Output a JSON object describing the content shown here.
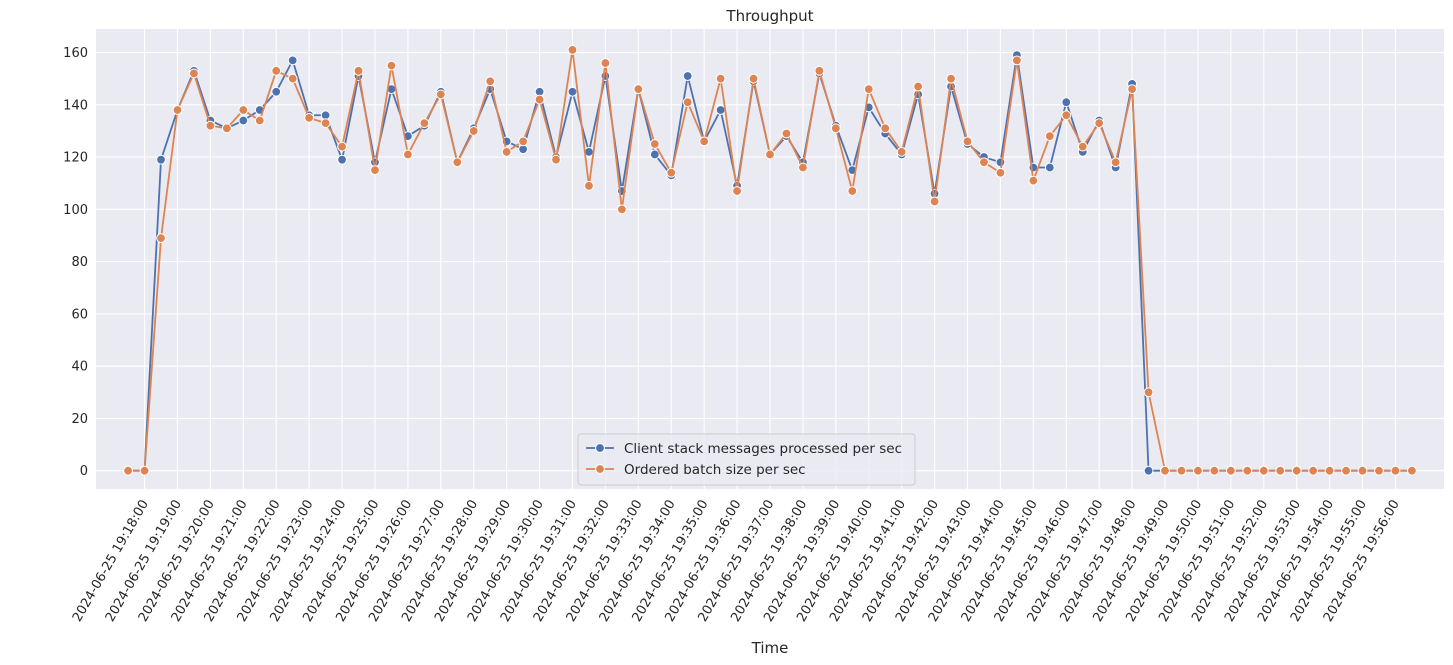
{
  "chart_data": {
    "type": "line",
    "title": "Throughput",
    "xlabel": "Time",
    "ylabel": "",
    "ylim": [
      -7,
      169
    ],
    "y_ticks": [
      0,
      20,
      40,
      60,
      80,
      100,
      120,
      140,
      160
    ],
    "x_ticks": [
      "2024-06-25 19:18:00",
      "2024-06-25 19:19:00",
      "2024-06-25 19:20:00",
      "2024-06-25 19:21:00",
      "2024-06-25 19:22:00",
      "2024-06-25 19:23:00",
      "2024-06-25 19:24:00",
      "2024-06-25 19:25:00",
      "2024-06-25 19:26:00",
      "2024-06-25 19:27:00",
      "2024-06-25 19:28:00",
      "2024-06-25 19:29:00",
      "2024-06-25 19:30:00",
      "2024-06-25 19:31:00",
      "2024-06-25 19:32:00",
      "2024-06-25 19:33:00",
      "2024-06-25 19:34:00",
      "2024-06-25 19:35:00",
      "2024-06-25 19:36:00",
      "2024-06-25 19:37:00",
      "2024-06-25 19:38:00",
      "2024-06-25 19:39:00",
      "2024-06-25 19:40:00",
      "2024-06-25 19:41:00",
      "2024-06-25 19:42:00",
      "2024-06-25 19:43:00",
      "2024-06-25 19:44:00",
      "2024-06-25 19:45:00",
      "2024-06-25 19:46:00",
      "2024-06-25 19:47:00",
      "2024-06-25 19:48:00",
      "2024-06-25 19:49:00",
      "2024-06-25 19:50:00",
      "2024-06-25 19:51:00",
      "2024-06-25 19:52:00",
      "2024-06-25 19:53:00",
      "2024-06-25 19:54:00",
      "2024-06-25 19:55:00",
      "2024-06-25 19:56:00"
    ],
    "x": [
      "2024-06-25 19:17:30",
      "2024-06-25 19:18:00",
      "2024-06-25 19:18:30",
      "2024-06-25 19:19:00",
      "2024-06-25 19:19:30",
      "2024-06-25 19:20:00",
      "2024-06-25 19:20:30",
      "2024-06-25 19:21:00",
      "2024-06-25 19:21:30",
      "2024-06-25 19:22:00",
      "2024-06-25 19:22:30",
      "2024-06-25 19:23:00",
      "2024-06-25 19:23:30",
      "2024-06-25 19:24:00",
      "2024-06-25 19:24:30",
      "2024-06-25 19:25:00",
      "2024-06-25 19:25:30",
      "2024-06-25 19:26:00",
      "2024-06-25 19:26:30",
      "2024-06-25 19:27:00",
      "2024-06-25 19:27:30",
      "2024-06-25 19:28:00",
      "2024-06-25 19:28:30",
      "2024-06-25 19:29:00",
      "2024-06-25 19:29:30",
      "2024-06-25 19:30:00",
      "2024-06-25 19:30:30",
      "2024-06-25 19:31:00",
      "2024-06-25 19:31:30",
      "2024-06-25 19:32:00",
      "2024-06-25 19:32:30",
      "2024-06-25 19:33:00",
      "2024-06-25 19:33:30",
      "2024-06-25 19:34:00",
      "2024-06-25 19:34:30",
      "2024-06-25 19:35:00",
      "2024-06-25 19:35:30",
      "2024-06-25 19:36:00",
      "2024-06-25 19:36:30",
      "2024-06-25 19:37:00",
      "2024-06-25 19:37:30",
      "2024-06-25 19:38:00",
      "2024-06-25 19:38:30",
      "2024-06-25 19:39:00",
      "2024-06-25 19:39:30",
      "2024-06-25 19:40:00",
      "2024-06-25 19:40:30",
      "2024-06-25 19:41:00",
      "2024-06-25 19:41:30",
      "2024-06-25 19:42:00",
      "2024-06-25 19:42:30",
      "2024-06-25 19:43:00",
      "2024-06-25 19:43:30",
      "2024-06-25 19:44:00",
      "2024-06-25 19:44:30",
      "2024-06-25 19:45:00",
      "2024-06-25 19:45:30",
      "2024-06-25 19:46:00",
      "2024-06-25 19:46:30",
      "2024-06-25 19:47:00",
      "2024-06-25 19:47:30",
      "2024-06-25 19:48:00",
      "2024-06-25 19:48:30",
      "2024-06-25 19:49:00",
      "2024-06-25 19:49:30",
      "2024-06-25 19:50:00",
      "2024-06-25 19:50:30",
      "2024-06-25 19:51:00",
      "2024-06-25 19:51:30",
      "2024-06-25 19:52:00",
      "2024-06-25 19:52:30",
      "2024-06-25 19:53:00",
      "2024-06-25 19:53:30",
      "2024-06-25 19:54:00",
      "2024-06-25 19:54:30",
      "2024-06-25 19:55:00",
      "2024-06-25 19:55:30",
      "2024-06-25 19:56:00",
      "2024-06-25 19:56:30"
    ],
    "series": [
      {
        "name": "Client stack messages processed per sec",
        "color": "#4c72b0",
        "values": [
          0,
          0,
          119,
          138,
          153,
          134,
          131,
          134,
          138,
          145,
          157,
          136,
          136,
          119,
          151,
          118,
          146,
          128,
          132,
          145,
          118,
          131,
          146,
          126,
          123,
          145,
          120,
          145,
          122,
          151,
          107,
          146,
          121,
          113,
          151,
          126,
          138,
          109,
          149,
          121,
          128,
          118,
          152,
          132,
          115,
          139,
          129,
          121,
          144,
          106,
          147,
          125,
          120,
          118,
          159,
          116,
          116,
          141,
          122,
          134,
          116,
          148,
          0,
          0,
          0,
          0,
          0,
          0,
          0,
          0,
          0,
          0,
          0,
          0,
          0,
          0,
          0,
          0,
          0
        ],
        "marker": "circle"
      },
      {
        "name": "Ordered batch size per sec",
        "color": "#dd8452",
        "values": [
          0,
          0,
          89,
          138,
          152,
          132,
          131,
          138,
          134,
          153,
          150,
          135,
          133,
          124,
          153,
          115,
          155,
          121,
          133,
          144,
          118,
          130,
          149,
          122,
          126,
          142,
          119,
          161,
          109,
          156,
          100,
          146,
          125,
          114,
          141,
          126,
          150,
          107,
          150,
          121,
          129,
          116,
          153,
          131,
          107,
          146,
          131,
          122,
          147,
          103,
          150,
          126,
          118,
          114,
          157,
          111,
          128,
          136,
          124,
          133,
          118,
          146,
          30,
          0,
          0,
          0,
          0,
          0,
          0,
          0,
          0,
          0,
          0,
          0,
          0,
          0,
          0,
          0,
          0
        ],
        "marker": "circle"
      }
    ],
    "grid": true,
    "legend_position": "lower-center",
    "background": "#eaeaf2"
  }
}
